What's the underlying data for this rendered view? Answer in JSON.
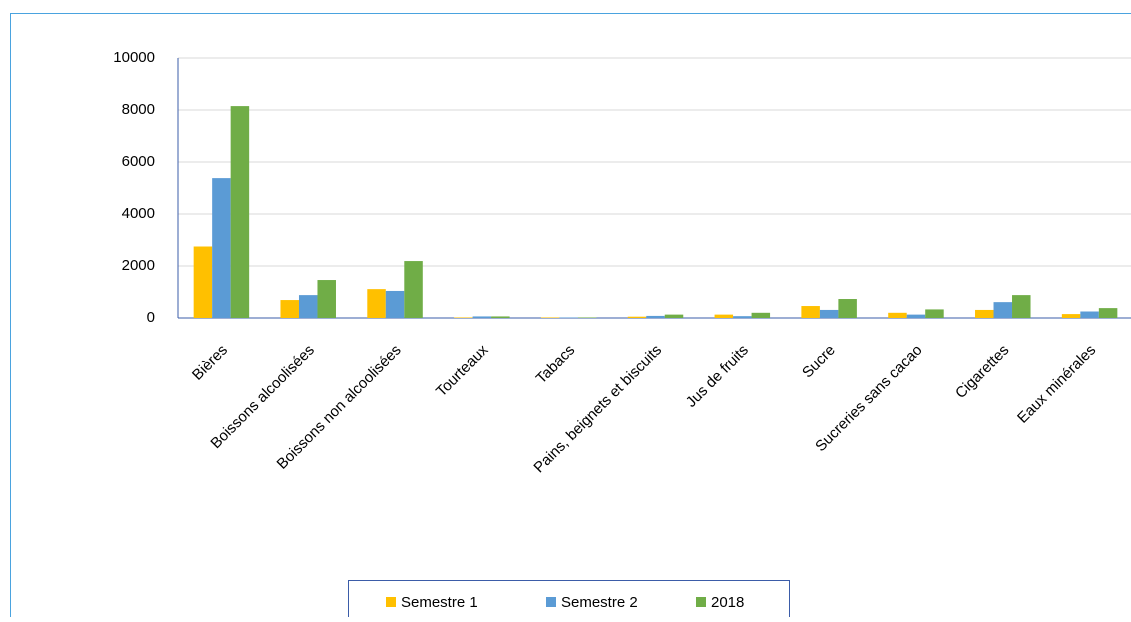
{
  "chart_data": {
    "type": "bar",
    "categories": [
      "Bières",
      "Boissons alcoolisées",
      "Boissons non alcoolisées",
      "Tourteaux",
      "Tabacs",
      "Pains, beignets et biscuits",
      "Jus de fruits",
      "Sucre",
      "Sucreries sans cacao",
      "Cigarettes",
      "Eaux minérales"
    ],
    "series": [
      {
        "name": "Semestre 1",
        "color": "#ffc000",
        "values": [
          2750,
          690,
          1110,
          20,
          20,
          50,
          130,
          460,
          200,
          310,
          150
        ]
      },
      {
        "name": "Semestre 2",
        "color": "#5b9bd5",
        "values": [
          5380,
          880,
          1040,
          60,
          20,
          80,
          70,
          310,
          130,
          610,
          250
        ]
      },
      {
        "name": "2018",
        "color": "#70ad47",
        "values": [
          8150,
          1460,
          2190,
          60,
          20,
          130,
          200,
          730,
          330,
          880,
          380
        ]
      }
    ],
    "ylim": [
      0,
      10000
    ],
    "yticks": [
      0,
      2000,
      4000,
      6000,
      8000,
      10000
    ],
    "grid": true,
    "legend": "bottom"
  }
}
